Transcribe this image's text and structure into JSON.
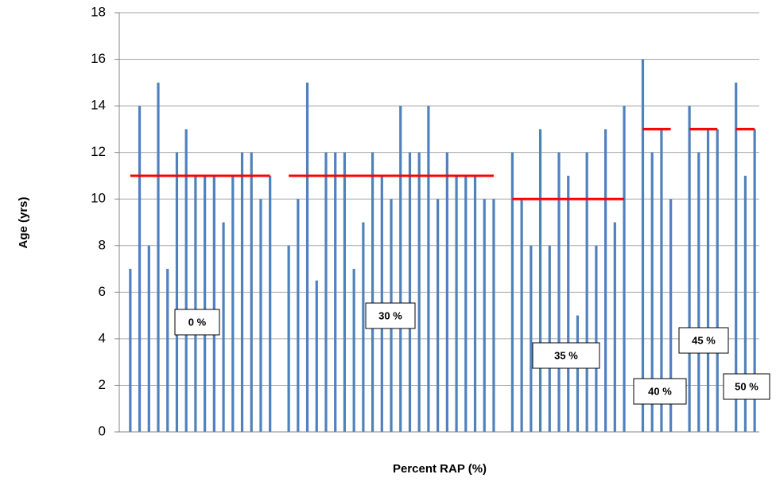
{
  "chart_data": {
    "type": "bar",
    "x_label": "Percent RAP (%)",
    "y_label": "Age (yrs)",
    "categories": [
      null,
      null,
      null,
      null,
      null,
      null,
      null,
      null,
      null,
      null,
      null,
      null,
      null,
      null,
      null,
      null,
      null,
      null,
      null,
      null,
      null,
      null,
      null,
      null,
      null,
      null,
      null,
      null,
      null,
      null,
      null,
      null,
      null,
      null,
      null,
      null,
      null,
      null,
      null,
      null,
      null,
      null,
      null,
      null,
      null,
      null,
      null,
      null,
      null,
      null,
      null,
      null,
      null,
      null,
      null,
      null,
      null,
      null,
      null,
      null,
      null,
      null,
      null,
      null,
      null,
      null,
      null,
      null
    ],
    "values": [
      7,
      14,
      8,
      15,
      7,
      12,
      13,
      11,
      11,
      11,
      9,
      11,
      12,
      12,
      10,
      11,
      null,
      8,
      10,
      15,
      6.5,
      12,
      12,
      12,
      7,
      9,
      12,
      11,
      10,
      14,
      12,
      12,
      14,
      10,
      12,
      11,
      11,
      11,
      10,
      10,
      null,
      12,
      10,
      8,
      13,
      8,
      12,
      11,
      5,
      12,
      8,
      13,
      9,
      14,
      null,
      16,
      12,
      13,
      10,
      null,
      14,
      12,
      13,
      13,
      null,
      15,
      11,
      13
    ],
    "mean_values": [
      11,
      11,
      11,
      11,
      11,
      11,
      11,
      11,
      11,
      11,
      11,
      11,
      11,
      11,
      11,
      11,
      null,
      11,
      11,
      11,
      11,
      11,
      11,
      11,
      11,
      11,
      11,
      11,
      11,
      11,
      11,
      11,
      11,
      11,
      11,
      11,
      11,
      11,
      11,
      11,
      null,
      10,
      10,
      10,
      10,
      10,
      10,
      10,
      10,
      10,
      10,
      10,
      10,
      10,
      null,
      13,
      13,
      13,
      13,
      null,
      13,
      13,
      13,
      13,
      null,
      13,
      13,
      13
    ],
    "group_labels": [
      "0 %",
      "30 %",
      "35 %",
      "40 %",
      "45 %",
      "50 %"
    ],
    "color": "#4f81bd",
    "mean_color": "#ff0000",
    "ylim": [
      0,
      18
    ],
    "yticks": [
      0,
      2,
      4,
      6,
      8,
      10,
      12,
      14,
      16,
      18
    ],
    "grid": true
  }
}
